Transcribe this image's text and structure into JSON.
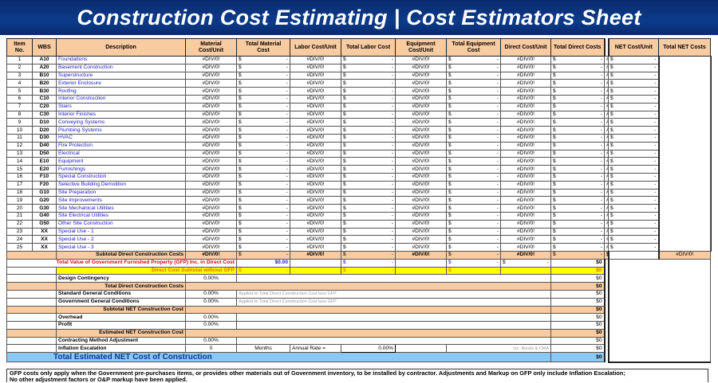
{
  "title": "Construction Cost Estimating | Cost Estimators Sheet",
  "headers": [
    "Item No.",
    "WBS",
    "Description",
    "Material Cost/Unit",
    "Total Material Cost",
    "Labor Cost/Unit",
    "Total Labor Cost",
    "Equipment Cost/Unit",
    "Total Equipment Cost",
    "Direct Cost/Unit",
    "Total Direct Costs",
    "NET Cost/Unit",
    "Total NET Costs"
  ],
  "cell_values": {
    "div0": "#DIV/0!",
    "dollar": "$",
    "dash": "-"
  },
  "items": [
    {
      "no": "1",
      "wbs": "A10",
      "desc": "Foundations"
    },
    {
      "no": "2",
      "wbs": "A20",
      "desc": "Basement Construction"
    },
    {
      "no": "3",
      "wbs": "B10",
      "desc": "Superstructure"
    },
    {
      "no": "4",
      "wbs": "B20",
      "desc": "Exterior Enclosure"
    },
    {
      "no": "5",
      "wbs": "B30",
      "desc": "Roofing"
    },
    {
      "no": "6",
      "wbs": "C10",
      "desc": "Interior Construction"
    },
    {
      "no": "7",
      "wbs": "C20",
      "desc": "Stairs"
    },
    {
      "no": "8",
      "wbs": "C30",
      "desc": "Interior Finishes"
    },
    {
      "no": "9",
      "wbs": "D10",
      "desc": "Conveying Systems"
    },
    {
      "no": "10",
      "wbs": "D20",
      "desc": "Plumbing Systems"
    },
    {
      "no": "11",
      "wbs": "D30",
      "desc": "HVAC"
    },
    {
      "no": "12",
      "wbs": "D40",
      "desc": "Fire Protection"
    },
    {
      "no": "13",
      "wbs": "D50",
      "desc": "Electrical"
    },
    {
      "no": "14",
      "wbs": "E10",
      "desc": "Equipment"
    },
    {
      "no": "15",
      "wbs": "E20",
      "desc": "Furnishings"
    },
    {
      "no": "16",
      "wbs": "F10",
      "desc": "Special Construction"
    },
    {
      "no": "17",
      "wbs": "F20",
      "desc": "Selective Building Demolition"
    },
    {
      "no": "18",
      "wbs": "G10",
      "desc": "Site Preparation"
    },
    {
      "no": "19",
      "wbs": "G20",
      "desc": "Site Improvements"
    },
    {
      "no": "20",
      "wbs": "G30",
      "desc": "Site Mechanical Utilities"
    },
    {
      "no": "21",
      "wbs": "G40",
      "desc": "Site Electrical Utilities"
    },
    {
      "no": "22",
      "wbs": "G50",
      "desc": "Other Site Construction"
    },
    {
      "no": "23",
      "wbs": "XX",
      "desc": "Special Use - 1"
    },
    {
      "no": "24",
      "wbs": "XX",
      "desc": "Special Use - 2"
    },
    {
      "no": "25",
      "wbs": "XX",
      "desc": "Special Use - 3"
    }
  ],
  "summary": {
    "subtotal_label": "Subtotal Direct Construction Costs",
    "zero": "$0",
    "gfp_label": "Total Value of Government Furnished Property (GFP) Inc. in Direct Cost",
    "gfp_value": "$0.00",
    "no_gfp_label": "Direct Cost Subtotal without GFP",
    "rows": [
      {
        "label": "Design Contingency",
        "pct": "0.00%",
        "kind": "input"
      },
      {
        "label": "Total Direct Construction Costs",
        "kind": "sub"
      },
      {
        "label": "Standard General Conditions",
        "pct": "0.00%",
        "note": "Applied to Total Direct Construction Cost less GFP",
        "kind": "input"
      },
      {
        "label": "Government General Conditions",
        "pct": "0.00%",
        "note": "Applied to Total Direct Construction Cost less GFP",
        "kind": "input"
      },
      {
        "label": "Subtotal NET Construction Cost",
        "kind": "sub"
      },
      {
        "label": "Overhead",
        "pct": "0.00%",
        "kind": "input"
      },
      {
        "label": "Profit",
        "pct": "0.00%",
        "kind": "input"
      },
      {
        "label": "Estimated NET Construction Cost",
        "kind": "sub"
      },
      {
        "label": "Contracting Method Adjustment",
        "pct": "0.00%",
        "kind": "input"
      }
    ],
    "inflation": {
      "label": "Inflation Escalation",
      "months_value": "0",
      "months_label": "Months",
      "rate_label": "Annual Rate =",
      "rate_value": "0.00%",
      "bonds_note": "Inc. Bonds & CMA"
    },
    "total_label": "Total Estimated NET Cost of Construction"
  },
  "footer": {
    "line1": "GFP costs only apply when the Government pre-purchases items, or provides other materials out of Government inventory, to be installed by contractor.  Adjustments and Markup on GFP only include Inflation Escalation;",
    "line2": "No other adjustment factors or O&P markup have been applied."
  }
}
